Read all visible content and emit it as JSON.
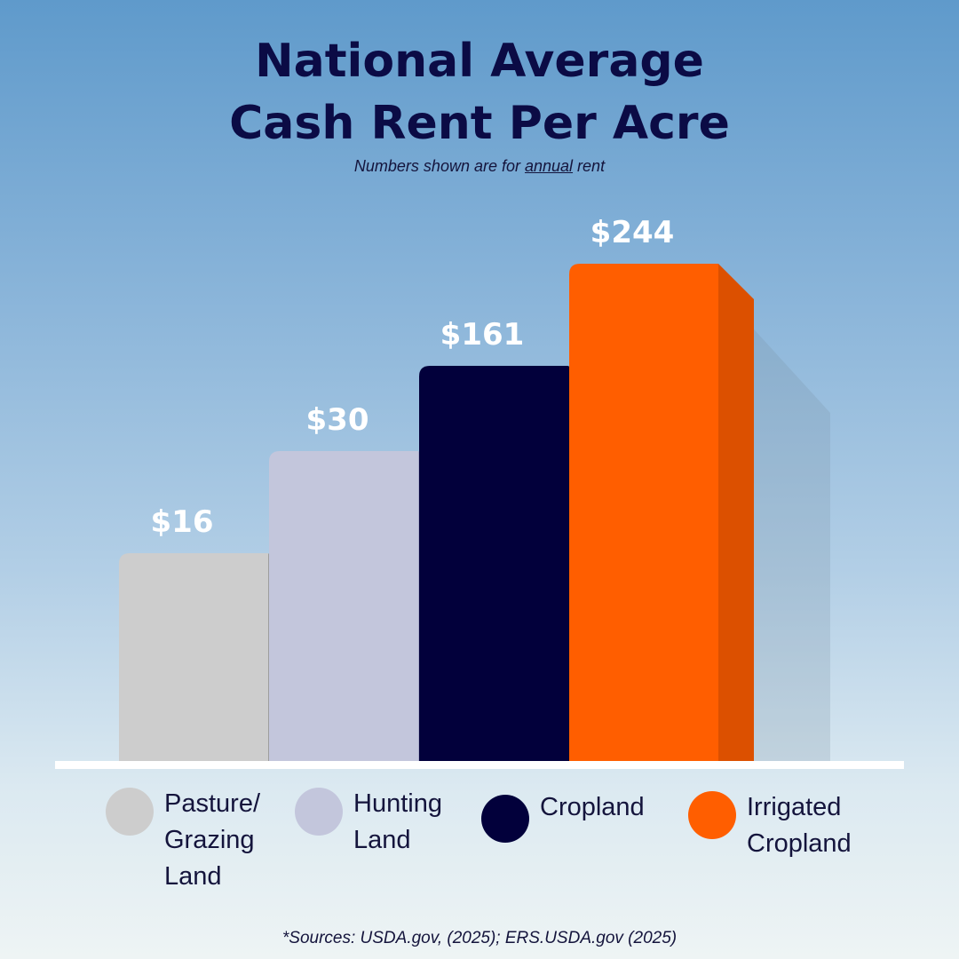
{
  "title_line1": "National Average",
  "title_line2": "Cash Rent Per Acre",
  "subtitle": {
    "prefix": "Numbers shown are for ",
    "emphasis": "annual",
    "suffix": " rent"
  },
  "chart_data": {
    "type": "bar",
    "title": "National Average Cash Rent Per Acre",
    "categories": [
      "Pasture/ Grazing Land",
      "Hunting Land",
      "Cropland",
      "Irrigated Cropland"
    ],
    "values": [
      16,
      30,
      161,
      244
    ],
    "value_labels": [
      "$16",
      "$30",
      "$161",
      "$244"
    ],
    "colors": [
      "#cdcdcd",
      "#c3c6dc",
      "#02003b",
      "#ff5e00"
    ],
    "side_colors": [
      "#b0b0b0",
      "#a8abc9",
      "#00002a",
      "#dc5000"
    ],
    "legend_position": "bottom",
    "grid": false
  },
  "legend": [
    {
      "label": "Pasture/\nGrazing\nLand",
      "color": "#cdcdcd"
    },
    {
      "label": "Hunting\nLand",
      "color": "#c3c6dc"
    },
    {
      "label": "Cropland",
      "color": "#02003b"
    },
    {
      "label": "Irrigated\nCropland",
      "color": "#ff5e00"
    }
  ],
  "source": "*Sources: USDA.gov, (2025); ERS.USDA.gov (2025)"
}
